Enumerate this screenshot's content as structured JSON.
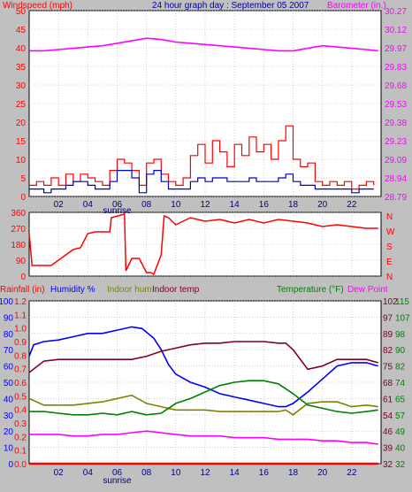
{
  "colors": {
    "background": "#c0c0c0",
    "plot_bg": "#ffffff",
    "windspeed": "#ff0000",
    "windavg": "#0000cc",
    "barometer": "#ff00ff",
    "direction": "#ff0000",
    "rain": "#ff0000",
    "humidity": "#0000ff",
    "indoor_hum": "#808000",
    "indoor_temp": "#800020",
    "temperature": "#008000",
    "dewpoint": "#ff00ff",
    "title": "#0000a0"
  },
  "header": {
    "windspeed_label": "Windspeed (mph)",
    "title": "24 hour graph day : September 05 2007",
    "barometer_label": "Barometer (in.)"
  },
  "mid": {
    "cardinals": [
      "N",
      "W",
      "S",
      "E",
      "N"
    ]
  },
  "bottom": {
    "rainfall_label": "Rainfall (in)",
    "humidity_label": "Humidity %",
    "indoor_hum_label": "Indoor hum",
    "indoor_temp_label": "Indoor temp",
    "temperature_label": "Temperature (°F)",
    "dewpoint_label": "Dew Point"
  },
  "chart_data": [
    {
      "type": "line",
      "name": "wind-barometer",
      "x_ticks": [
        "02",
        "04",
        "06",
        "08",
        "10",
        "12",
        "14",
        "16",
        "18",
        "20",
        "22"
      ],
      "sunrise_label": "sunrise",
      "sunrise_hour": 6.0,
      "y_left": {
        "label": "Windspeed (mph)",
        "range": [
          0,
          50
        ],
        "ticks": [
          "0",
          "5",
          "10",
          "15",
          "20",
          "25",
          "30",
          "35",
          "40",
          "45",
          "50"
        ]
      },
      "y_right": {
        "label": "Barometer (in.)",
        "range": [
          28.79,
          30.27
        ],
        "ticks": [
          "28.79",
          "28.94",
          "29.09",
          "29.23",
          "29.38",
          "29.53",
          "29.68",
          "29.83",
          "29.97",
          "30.12",
          "30.27"
        ]
      },
      "series": [
        {
          "name": "Windspeed (mph)",
          "axis": "left",
          "x": [
            0,
            0.5,
            1,
            1.5,
            2,
            2.5,
            3,
            3.5,
            4,
            4.5,
            5,
            5.5,
            6,
            6.5,
            7,
            7.5,
            8,
            8.5,
            9,
            9.5,
            10,
            10.5,
            11,
            11.5,
            12,
            12.5,
            13,
            13.5,
            14,
            14.5,
            15,
            15.5,
            16,
            16.5,
            17,
            17.5,
            18,
            18.5,
            19,
            19.5,
            20,
            20.5,
            21,
            21.5,
            22,
            22.5,
            23,
            23.5
          ],
          "y": [
            3,
            4,
            3,
            5,
            3,
            6,
            4,
            6,
            5,
            4,
            3,
            7,
            10,
            9,
            7,
            3,
            9,
            10,
            6,
            4,
            3,
            5,
            11,
            14,
            9,
            15,
            12,
            8,
            14,
            11,
            16,
            12,
            14,
            10,
            15,
            19,
            10,
            8,
            9,
            4,
            3,
            4,
            3,
            4,
            2,
            3,
            4,
            3
          ]
        },
        {
          "name": "Wind average",
          "axis": "left",
          "x": [
            0,
            0.5,
            1,
            1.5,
            2,
            2.5,
            3,
            3.5,
            4,
            4.5,
            5,
            5.5,
            6,
            6.5,
            7,
            7.5,
            8,
            8.5,
            9,
            9.5,
            10,
            10.5,
            11,
            11.5,
            12,
            12.5,
            13,
            13.5,
            14,
            14.5,
            15,
            15.5,
            16,
            16.5,
            17,
            17.5,
            18,
            18.5,
            19,
            19.5,
            20,
            20.5,
            21,
            21.5,
            22,
            22.5,
            23,
            23.5
          ],
          "y": [
            2,
            2,
            1,
            2,
            2,
            3,
            4,
            4,
            3,
            2,
            2,
            4,
            7,
            7,
            5,
            1,
            6,
            7,
            4,
            2,
            2,
            2,
            4,
            5,
            4,
            5,
            5,
            4,
            4,
            4,
            5,
            4,
            4,
            4,
            5,
            6,
            4,
            3,
            3,
            2,
            2,
            2,
            2,
            2,
            1,
            2,
            2,
            2
          ]
        },
        {
          "name": "Barometer (in.)",
          "axis": "right",
          "x": [
            0,
            1,
            2,
            3,
            4,
            5,
            6,
            7,
            8,
            9,
            10,
            11,
            12,
            13,
            14,
            15,
            16,
            17,
            18,
            19,
            20,
            21,
            22,
            23,
            23.8
          ],
          "y": [
            29.95,
            29.95,
            29.96,
            29.97,
            29.98,
            29.99,
            30.01,
            30.03,
            30.05,
            30.04,
            30.02,
            30.01,
            30.0,
            29.99,
            29.98,
            29.97,
            29.96,
            29.95,
            29.95,
            29.97,
            29.99,
            29.98,
            29.97,
            29.96,
            29.95
          ]
        }
      ]
    },
    {
      "type": "line",
      "name": "wind-direction",
      "y_left": {
        "range": [
          0,
          360
        ],
        "ticks": [
          "0",
          "90",
          "180",
          "270",
          "360"
        ]
      },
      "series": [
        {
          "name": "Wind direction",
          "x": [
            0,
            0.2,
            1.5,
            2.5,
            3,
            3.5,
            4,
            4.5,
            5,
            5.5,
            5.6,
            6.5,
            6.6,
            7,
            7.5,
            8,
            8.3,
            8.5,
            9,
            9.2,
            9.5,
            10,
            11,
            12,
            13,
            14,
            15,
            16,
            17,
            18,
            19,
            20,
            21,
            22,
            23,
            23.8
          ],
          "y": [
            240,
            60,
            60,
            120,
            150,
            160,
            240,
            250,
            250,
            250,
            330,
            350,
            30,
            100,
            100,
            20,
            20,
            10,
            120,
            340,
            330,
            290,
            330,
            310,
            320,
            300,
            320,
            300,
            320,
            310,
            300,
            280,
            290,
            280,
            270,
            270
          ]
        }
      ]
    },
    {
      "type": "line",
      "name": "temperature-humidity",
      "x_ticks": [
        "02",
        "04",
        "06",
        "08",
        "10",
        "12",
        "14",
        "16",
        "18",
        "20",
        "22"
      ],
      "sunrise_label": "sunrise",
      "sunrise_hour": 6.0,
      "y_rain": {
        "range": [
          0.0,
          1.2
        ],
        "ticks": [
          "0.0",
          "0.1",
          "0.2",
          "0.3",
          "0.4",
          "0.5",
          "0.6",
          "0.7",
          "0.8",
          "0.9",
          "1.0",
          "1.1",
          "1.2"
        ]
      },
      "y_humidity": {
        "range": [
          0,
          100
        ],
        "ticks": [
          "0",
          "10",
          "20",
          "30",
          "40",
          "50",
          "60",
          "70",
          "80",
          "90",
          "100"
        ]
      },
      "y_temp_right1": {
        "range": [
          32,
          115
        ],
        "ticks": [
          "32",
          "40",
          "49",
          "57",
          "65",
          "74",
          "82",
          "90",
          "98",
          "107",
          "115"
        ]
      },
      "y_temp_right2": {
        "range": [
          32,
          102
        ],
        "ticks": [
          "32",
          "39",
          "46",
          "54",
          "61",
          "68",
          "75",
          "82",
          "89",
          "97",
          "102"
        ]
      },
      "series": [
        {
          "name": "Rainfall (in)",
          "axis": "rain",
          "x": [
            0,
            23.8
          ],
          "y": [
            0.0,
            0.0
          ]
        },
        {
          "name": "Humidity %",
          "axis": "humidity",
          "x": [
            0,
            0.3,
            1,
            2,
            3,
            4,
            5,
            6,
            7,
            7.7,
            8.5,
            9,
            9.5,
            10,
            11,
            12,
            13,
            14,
            15,
            16,
            17,
            17.5,
            18,
            19,
            20,
            21,
            22,
            23,
            23.8
          ],
          "y": [
            66,
            73,
            75,
            76,
            78,
            80,
            80,
            82,
            84,
            83,
            77,
            70,
            61,
            55,
            50,
            47,
            43,
            41,
            39,
            37,
            35,
            35,
            37,
            44,
            52,
            60,
            62,
            62,
            60
          ]
        },
        {
          "name": "Indoor hum",
          "axis": "humidity",
          "x": [
            0,
            1,
            2,
            3,
            4,
            5,
            6,
            7,
            8,
            9,
            10,
            11,
            12,
            13,
            14,
            15,
            16,
            17,
            17.5,
            18,
            19,
            20,
            21,
            22,
            23,
            23.8
          ],
          "y": [
            40,
            36,
            36,
            36,
            37,
            38,
            40,
            42,
            37,
            35,
            33,
            33,
            33,
            32,
            32,
            32,
            32,
            32,
            33,
            30,
            37,
            38,
            38,
            35,
            36,
            35
          ]
        },
        {
          "name": "Indoor temp",
          "axis": "humidity",
          "x": [
            0,
            1,
            2,
            3,
            4,
            5,
            6,
            7,
            8,
            9,
            10,
            11,
            12,
            13,
            14,
            15,
            16,
            17,
            17.5,
            18,
            19,
            20,
            21,
            22,
            23,
            23.8
          ],
          "y": [
            56,
            63,
            64,
            64,
            64,
            64,
            64,
            64,
            66,
            69,
            71,
            73,
            74,
            74,
            75,
            75,
            75,
            74,
            74,
            70,
            58,
            60,
            64,
            64,
            64,
            62
          ]
        },
        {
          "name": "Temperature (°F)",
          "axis": "humidity",
          "x": [
            0,
            1,
            2,
            3,
            4,
            5,
            6,
            7,
            8,
            9,
            10,
            11,
            12,
            13,
            14,
            15,
            16,
            17,
            18,
            19,
            20,
            21,
            22,
            23,
            23.8
          ],
          "y": [
            32,
            32,
            31,
            30,
            30,
            31,
            30,
            32,
            30,
            31,
            37,
            40,
            44,
            48,
            50,
            51,
            51,
            49,
            43,
            36,
            34,
            32,
            31,
            32,
            33
          ]
        },
        {
          "name": "Dew Point",
          "axis": "humidity",
          "x": [
            0,
            1,
            2,
            3,
            4,
            5,
            6,
            7,
            8,
            9,
            10,
            11,
            12,
            13,
            14,
            15,
            16,
            17,
            18,
            19,
            20,
            21,
            22,
            23,
            23.8
          ],
          "y": [
            18,
            18,
            18,
            17,
            17,
            18,
            18,
            19,
            20,
            19,
            18,
            17,
            17,
            17,
            16,
            16,
            16,
            15,
            15,
            15,
            14,
            14,
            13,
            13,
            12
          ]
        }
      ]
    }
  ]
}
